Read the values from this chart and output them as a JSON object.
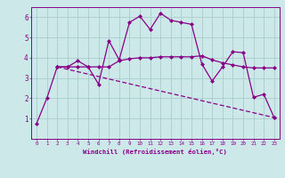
{
  "background_color": "#cce8e8",
  "grid_color": "#aacccc",
  "line_color": "#880088",
  "xlim": [
    -0.5,
    23.5
  ],
  "ylim": [
    0,
    6.5
  ],
  "xlabel": "Windchill (Refroidissement éolien,°C)",
  "xtick_labels": [
    "0",
    "1",
    "2",
    "3",
    "4",
    "5",
    "6",
    "7",
    "8",
    "9",
    "10",
    "11",
    "12",
    "13",
    "14",
    "15",
    "16",
    "17",
    "18",
    "19",
    "20",
    "21",
    "22",
    "23"
  ],
  "ytick_vals": [
    1,
    2,
    3,
    4,
    5,
    6
  ],
  "series1_x": [
    0,
    1,
    2,
    3,
    4,
    5,
    6,
    7,
    8,
    9,
    10,
    11,
    12,
    13,
    14,
    15,
    16,
    17,
    18,
    19,
    20,
    21,
    22,
    23
  ],
  "series1_y": [
    0.75,
    2.0,
    3.55,
    3.55,
    3.85,
    3.55,
    2.7,
    4.85,
    3.9,
    5.75,
    6.05,
    5.4,
    6.2,
    5.85,
    5.75,
    5.65,
    3.7,
    2.85,
    3.55,
    4.3,
    4.25,
    2.05,
    2.2,
    1.05
  ],
  "series2_x": [
    2,
    3,
    4,
    5,
    6,
    7,
    8,
    9,
    10,
    11,
    12,
    13,
    14,
    15,
    16,
    17,
    18,
    19,
    20,
    21,
    22,
    23
  ],
  "series2_y": [
    3.55,
    3.55,
    3.55,
    3.55,
    3.55,
    3.55,
    3.85,
    3.95,
    4.0,
    4.0,
    4.05,
    4.05,
    4.05,
    4.05,
    4.1,
    3.9,
    3.75,
    3.65,
    3.55,
    3.5,
    3.5,
    3.5
  ],
  "series3_x": [
    2,
    23
  ],
  "series3_y": [
    3.55,
    1.05
  ],
  "marker": "D",
  "marker_size": 2,
  "line_width": 0.9
}
